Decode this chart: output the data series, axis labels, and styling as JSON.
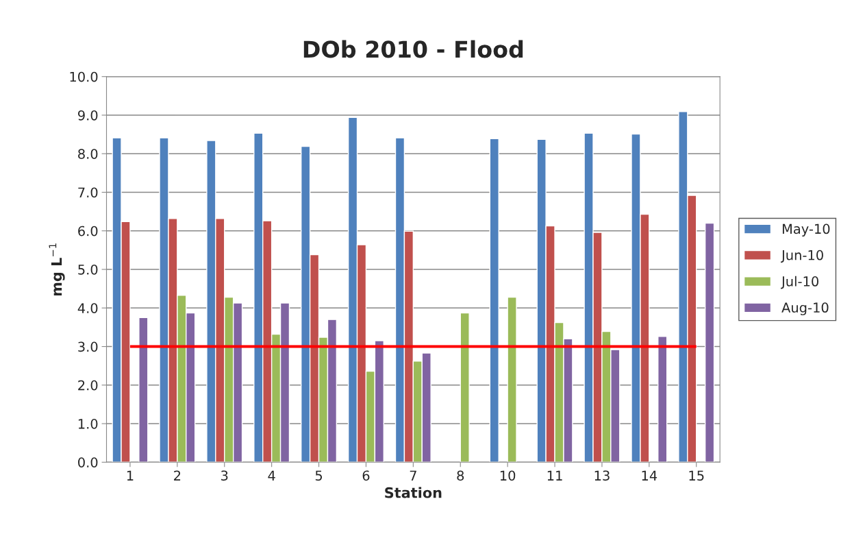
{
  "chart_data": {
    "type": "bar",
    "title": "DOb 2010 - Flood",
    "xlabel": "Station",
    "ylabel": "mg L$^{−1}$",
    "categories": [
      "1",
      "2",
      "3",
      "4",
      "5",
      "6",
      "7",
      "8",
      "10",
      "11",
      "13",
      "14",
      "15"
    ],
    "series": [
      {
        "name": "May-10",
        "color": "#4f81bd",
        "values": [
          8.41,
          8.41,
          8.34,
          8.53,
          8.19,
          8.94,
          8.41,
          null,
          8.39,
          8.37,
          8.53,
          8.51,
          9.09
        ]
      },
      {
        "name": "Jun-10",
        "color": "#c0504d",
        "values": [
          6.24,
          6.32,
          6.32,
          6.26,
          5.38,
          5.64,
          5.99,
          null,
          null,
          6.13,
          5.96,
          6.43,
          6.92
        ]
      },
      {
        "name": "Jul-10",
        "color": "#9bbb59",
        "values": [
          null,
          4.33,
          4.28,
          3.32,
          3.24,
          2.36,
          2.62,
          3.87,
          4.28,
          3.62,
          3.39,
          null,
          null
        ]
      },
      {
        "name": "Aug-10",
        "color": "#8064a2",
        "values": [
          3.75,
          3.87,
          4.13,
          4.13,
          3.7,
          3.15,
          2.83,
          null,
          null,
          3.2,
          2.92,
          3.26,
          6.2
        ]
      }
    ],
    "ylim": [
      0,
      10
    ],
    "yticks": [
      {
        "value": 0,
        "label": "0.0"
      },
      {
        "value": 1,
        "label": "1.0"
      },
      {
        "value": 2,
        "label": "2.0"
      },
      {
        "value": 3,
        "label": "3.0"
      },
      {
        "value": 4,
        "label": "4.0"
      },
      {
        "value": 5,
        "label": "5.0"
      },
      {
        "value": 6,
        "label": "6.0"
      },
      {
        "value": 7,
        "label": "7.0"
      },
      {
        "value": 8,
        "label": "8.0"
      },
      {
        "value": 9,
        "label": "9.0"
      },
      {
        "value": 10,
        "label": "10.0"
      }
    ],
    "ref_lines": [
      {
        "axis": "y",
        "value": 3,
        "color": "#ff0000"
      }
    ],
    "grid": "y",
    "legend": "right"
  }
}
